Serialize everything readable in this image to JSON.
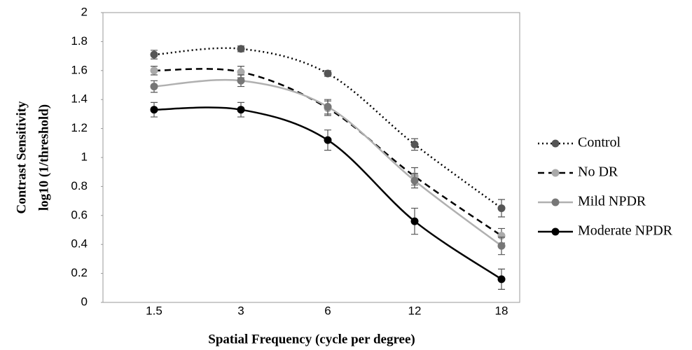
{
  "chart_data": {
    "type": "line",
    "xlabel": "Spatial Frequency (cycle per degree)",
    "ylabel": [
      "Contrast Sensitivity",
      "log10 (1/threshold)"
    ],
    "categories": [
      "1.5",
      "3",
      "6",
      "12",
      "18"
    ],
    "ylim": [
      0,
      2
    ],
    "yticks": [
      0,
      0.2,
      0.4,
      0.6,
      0.8,
      1,
      1.2,
      1.4,
      1.6,
      1.8,
      2
    ],
    "grid": false,
    "legend": "right",
    "smooth": true,
    "series": [
      {
        "name": "Control",
        "color": "#000000",
        "marker_color": "#555555",
        "dash": "dotted",
        "values": [
          1.71,
          1.75,
          1.58,
          1.09,
          0.65
        ],
        "errors": [
          0.03,
          0.02,
          0.02,
          0.04,
          0.06
        ]
      },
      {
        "name": "No DR",
        "color": "#000000",
        "marker_color": "#aaaaaa",
        "dash": "dashed",
        "values": [
          1.6,
          1.59,
          1.34,
          0.87,
          0.46
        ],
        "errors": [
          0.03,
          0.04,
          0.05,
          0.06,
          0.05
        ]
      },
      {
        "name": "Mild NPDR",
        "color": "#b0b0b0",
        "marker_color": "#777777",
        "dash": "solid",
        "values": [
          1.49,
          1.53,
          1.35,
          0.84,
          0.39
        ],
        "errors": [
          0.04,
          0.04,
          0.05,
          0.05,
          0.06
        ]
      },
      {
        "name": "Moderate NPDR",
        "color": "#000000",
        "marker_color": "#000000",
        "dash": "solid",
        "values": [
          1.33,
          1.33,
          1.12,
          0.56,
          0.16
        ],
        "errors": [
          0.05,
          0.05,
          0.07,
          0.09,
          0.07
        ]
      }
    ]
  }
}
